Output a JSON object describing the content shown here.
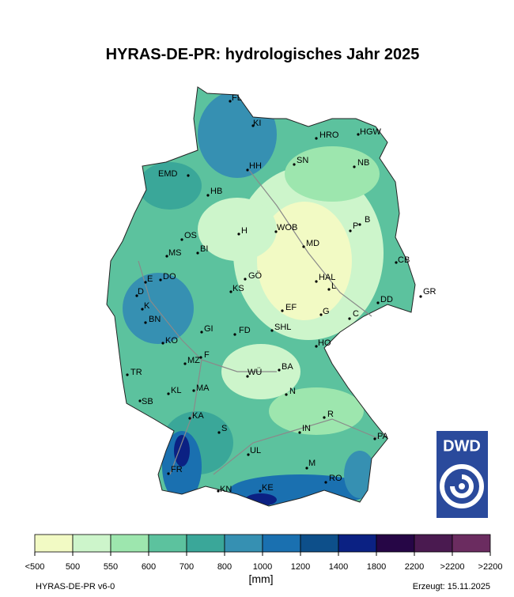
{
  "title": "HYRAS-DE-PR: hydrologisches Jahr 2025",
  "cities": [
    "FL",
    "KI",
    "HRO",
    "HGW",
    "SN",
    "NB",
    "HH",
    "EMD",
    "HB",
    "B",
    "P",
    "H",
    "WOB",
    "OS",
    "BI",
    "MS",
    "MD",
    "CB",
    "E",
    "DO",
    "GÖ",
    "HAL",
    "L",
    "KS",
    "D",
    "GR",
    "DD",
    "K",
    "EF",
    "G",
    "C",
    "BN",
    "GI",
    "FD",
    "SHL",
    "KO",
    "HO",
    "F",
    "MZ",
    "BA",
    "WÜ",
    "TR",
    "MA",
    "KL",
    "N",
    "SB",
    "KA",
    "R",
    "IN",
    "S",
    "PA",
    "UL",
    "M",
    "FR",
    "RO",
    "KE",
    "KN"
  ],
  "legend": {
    "colors": [
      "#f2fac4",
      "#cdf5cb",
      "#9de6ae",
      "#5cc29e",
      "#3aa799",
      "#3690b2",
      "#1a70b0",
      "#0d4f8a",
      "#0b2183",
      "#260646",
      "#4a1a50",
      "#6b2c60"
    ],
    "labels": [
      "<500",
      "500",
      "550",
      "600",
      "700",
      "800",
      "1000",
      "1200",
      "1400",
      "1800",
      "2200",
      ">2200"
    ],
    "last_label": ">2200",
    "unit": "[mm]"
  },
  "footer": {
    "left": "HYRAS-DE-PR v6-0",
    "right": "Erzeugt: 15.11.2025"
  },
  "logo": "DWD"
}
